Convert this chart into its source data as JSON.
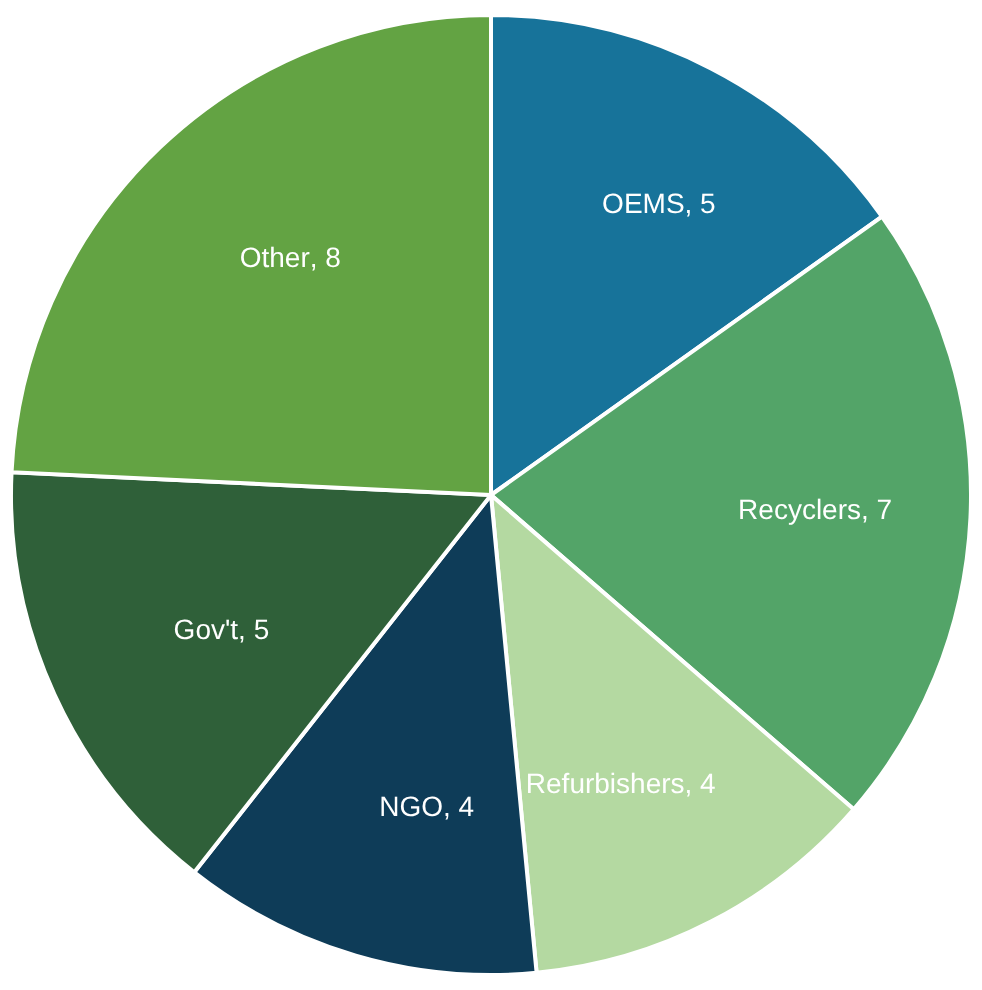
{
  "chart_data": {
    "type": "pie",
    "categories": [
      "OEMS",
      "Recyclers",
      "Refurbishers",
      "NGO",
      "Gov't",
      "Other"
    ],
    "values": [
      5,
      7,
      4,
      4,
      5,
      8
    ],
    "colors": [
      "#17739a",
      "#53a468",
      "#b4d9a1",
      "#0e3c58",
      "#2f6039",
      "#63a343"
    ],
    "value_labels": [
      ", 5",
      ", 7",
      ", 4",
      ", 4",
      ", 5",
      ", 8"
    ],
    "legend": false
  }
}
